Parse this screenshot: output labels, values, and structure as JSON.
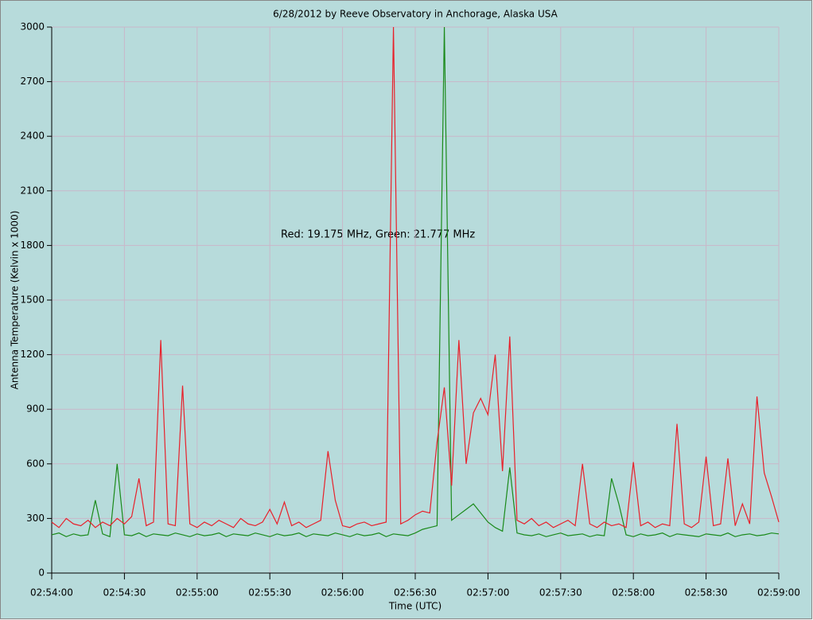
{
  "chart_data": {
    "type": "line",
    "title": "6/28/2012  by  Reeve Observatory  in  Anchorage, Alaska  USA",
    "x_label": "Time (UTC)",
    "y_label": "Antenna Temperature (Kelvin x 1000)",
    "annotation": "Red: 19.175 MHz, Green: 21.777 MHz",
    "x": [
      "02:54:00",
      "02:54:03",
      "02:54:06",
      "02:54:09",
      "02:54:12",
      "02:54:15",
      "02:54:18",
      "02:54:21",
      "02:54:24",
      "02:54:27",
      "02:54:30",
      "02:54:33",
      "02:54:36",
      "02:54:39",
      "02:54:42",
      "02:54:45",
      "02:54:48",
      "02:54:51",
      "02:54:54",
      "02:54:57",
      "02:55:00",
      "02:55:03",
      "02:55:06",
      "02:55:09",
      "02:55:12",
      "02:55:15",
      "02:55:18",
      "02:55:21",
      "02:55:24",
      "02:55:27",
      "02:55:30",
      "02:55:33",
      "02:55:36",
      "02:55:39",
      "02:55:42",
      "02:55:45",
      "02:55:48",
      "02:55:51",
      "02:55:54",
      "02:55:57",
      "02:56:00",
      "02:56:03",
      "02:56:06",
      "02:56:09",
      "02:56:12",
      "02:56:15",
      "02:56:18",
      "02:56:21",
      "02:56:24",
      "02:56:27",
      "02:56:30",
      "02:56:33",
      "02:56:36",
      "02:56:39",
      "02:56:42",
      "02:56:45",
      "02:56:48",
      "02:56:51",
      "02:56:54",
      "02:56:57",
      "02:57:00",
      "02:57:03",
      "02:57:06",
      "02:57:09",
      "02:57:12",
      "02:57:15",
      "02:57:18",
      "02:57:21",
      "02:57:24",
      "02:57:27",
      "02:57:30",
      "02:57:33",
      "02:57:36",
      "02:57:39",
      "02:57:42",
      "02:57:45",
      "02:57:48",
      "02:57:51",
      "02:57:54",
      "02:57:57",
      "02:58:00",
      "02:58:03",
      "02:58:06",
      "02:58:09",
      "02:58:12",
      "02:58:15",
      "02:58:18",
      "02:58:21",
      "02:58:24",
      "02:58:27",
      "02:58:30",
      "02:58:33",
      "02:58:36",
      "02:58:39",
      "02:58:42",
      "02:58:45",
      "02:58:48",
      "02:58:51",
      "02:58:54",
      "02:58:57",
      "02:59:00"
    ],
    "series": [
      {
        "color": "#1a8a1a",
        "values": [
          210,
          220,
          200,
          215,
          205,
          210,
          400,
          215,
          200,
          600,
          210,
          205,
          220,
          200,
          215,
          210,
          205,
          220,
          210,
          200,
          215,
          205,
          210,
          220,
          200,
          215,
          210,
          205,
          220,
          210,
          200,
          215,
          205,
          210,
          220,
          200,
          215,
          210,
          205,
          220,
          210,
          200,
          215,
          205,
          210,
          220,
          200,
          215,
          210,
          205,
          220,
          240,
          250,
          260,
          3000,
          290,
          320,
          350,
          380,
          330,
          280,
          250,
          230,
          580,
          220,
          210,
          205,
          215,
          200,
          210,
          220,
          205,
          210,
          215,
          200,
          210,
          205,
          520,
          380,
          210,
          200,
          215,
          205,
          210,
          220,
          200,
          215,
          210,
          205,
          200,
          215,
          210,
          205,
          220,
          200,
          210,
          215,
          205,
          210,
          220,
          215
        ]
      },
      {
        "color": "#e8202a",
        "values": [
          280,
          250,
          300,
          270,
          260,
          290,
          250,
          280,
          260,
          300,
          270,
          310,
          520,
          260,
          280,
          1280,
          270,
          260,
          1030,
          270,
          250,
          280,
          260,
          290,
          270,
          250,
          300,
          270,
          260,
          280,
          350,
          270,
          390,
          260,
          280,
          250,
          270,
          290,
          670,
          400,
          260,
          250,
          270,
          280,
          260,
          270,
          280,
          3000,
          270,
          290,
          320,
          340,
          330,
          720,
          1020,
          480,
          1280,
          600,
          880,
          960,
          870,
          1200,
          560,
          1300,
          290,
          270,
          300,
          260,
          280,
          250,
          270,
          290,
          260,
          600,
          270,
          250,
          280,
          260,
          270,
          250,
          610,
          260,
          280,
          250,
          270,
          260,
          820,
          270,
          250,
          280,
          640,
          260,
          270,
          630,
          260,
          380,
          270,
          970,
          550,
          420,
          280
        ]
      }
    ],
    "xlim": [
      "02:54:00",
      "02:59:00"
    ],
    "xticks": [
      "02:54:00",
      "02:54:30",
      "02:55:00",
      "02:55:30",
      "02:56:00",
      "02:56:30",
      "02:57:00",
      "02:57:30",
      "02:58:00",
      "02:58:30",
      "02:59:00"
    ],
    "ylim": [
      0,
      3000
    ],
    "yticks": [
      0,
      300,
      600,
      900,
      1200,
      1500,
      1800,
      2100,
      2400,
      2700,
      3000
    ],
    "grid": true
  }
}
